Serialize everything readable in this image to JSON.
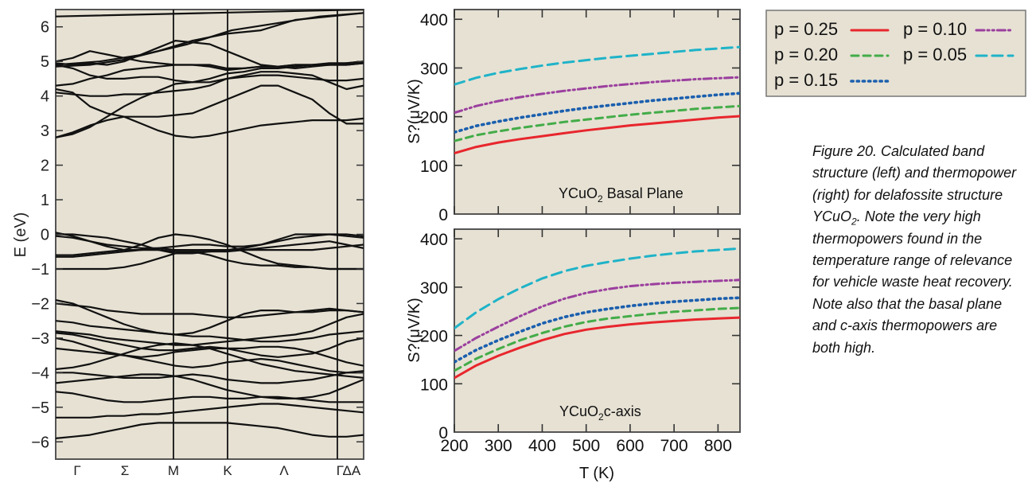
{
  "caption": {
    "text": "Figure 20. Calculated band structure (left) and thermopower (right) for delafossite structure YCuO",
    "sub": "2",
    "tail": ". Note the very high thermopowers found in the temperature range of relevance for vehicle waste heat recovery. Note also that the basal plane and c-axis thermopowers are both high."
  },
  "legend": {
    "entries": [
      {
        "label": "p = 0.25",
        "color": "#e8262d",
        "dash": "solid"
      },
      {
        "label": "p = 0.10",
        "color": "#9b3f9e",
        "dash": "dashdotdot"
      },
      {
        "label": "p = 0.20",
        "color": "#43ac48",
        "dash": "dashed"
      },
      {
        "label": "p = 0.05",
        "color": "#1fb3c8",
        "dash": "longdash"
      },
      {
        "label": "p = 0.15",
        "color": "#1b5fae",
        "dash": "dotted"
      }
    ]
  },
  "chart_data": [
    {
      "type": "line",
      "title": "",
      "xlabel": "",
      "ylabel": "E (eV)",
      "ylim": [
        -6.5,
        6.5
      ],
      "yticks": [
        6,
        5,
        4,
        3,
        2,
        1,
        0,
        -1,
        -2,
        -3,
        -4,
        -5,
        -6
      ],
      "ytick_labels": [
        "6",
        "5",
        "4",
        "3",
        "2",
        "1",
        "0",
        "−1",
        "−2",
        "−3",
        "−4",
        "−5",
        "−6"
      ],
      "x_labels": [
        "Γ",
        "Σ",
        "M",
        "K",
        "Λ",
        "ΓΔA"
      ],
      "x_vertical_lines": [
        "M",
        "K",
        "Γ"
      ],
      "bands": [
        [
          4.85,
          4.9,
          5.05,
          5.3,
          5.6,
          5.8,
          5.9,
          6.2,
          6.3,
          6.4
        ],
        [
          4.9,
          5.0,
          5.2,
          5.5,
          5.9,
          6.1,
          6.3,
          6.4
        ],
        [
          4.95,
          4.9,
          4.95,
          4.9,
          5.0,
          5.2,
          5.4,
          5.6,
          5.55,
          5.5,
          5.3,
          5.1,
          4.9,
          4.85,
          4.8,
          4.85,
          4.9,
          4.95,
          5.0
        ],
        [
          4.9,
          4.8,
          4.6,
          4.5,
          4.5,
          4.55,
          4.55,
          4.45,
          4.4,
          4.5,
          4.65,
          4.7,
          4.8,
          4.8,
          4.85,
          4.9,
          4.9,
          4.9,
          4.95
        ],
        [
          4.3,
          4.35,
          4.5,
          4.6,
          4.75,
          4.8,
          4.85,
          4.9,
          4.9,
          4.85,
          4.75,
          4.8,
          4.85,
          4.85,
          4.9,
          4.9,
          4.9,
          4.9,
          4.95
        ],
        [
          5.0,
          5.1,
          5.3,
          5.2,
          5.1,
          5.0,
          4.95,
          4.9,
          4.9,
          4.9,
          4.8,
          4.8,
          4.85,
          4.85,
          4.9,
          4.9,
          4.95,
          4.95,
          5.0
        ],
        [
          4.1,
          4.05,
          4.0,
          4.0,
          4.05,
          4.05,
          4.1,
          4.15,
          4.2,
          4.3,
          4.5,
          4.6,
          4.7,
          4.7,
          4.65,
          4.6,
          4.4,
          4.2,
          4.3
        ],
        [
          2.8,
          2.95,
          3.15,
          3.3,
          3.4,
          3.4,
          3.4,
          3.45,
          3.5,
          3.7,
          3.9,
          4.1,
          4.3,
          4.3,
          4.1,
          3.9,
          3.5,
          3.2,
          3.2
        ],
        [
          4.2,
          4.1,
          3.7,
          3.5,
          3.4,
          3.2,
          3.0,
          2.85,
          2.8,
          2.85,
          2.95,
          3.05,
          3.15,
          3.2,
          3.25,
          3.3,
          3.3,
          3.3,
          3.35
        ],
        [
          2.8,
          2.9,
          3.1,
          3.4,
          3.7,
          3.95,
          4.15,
          4.35,
          4.4,
          4.4,
          4.5,
          4.55,
          4.6,
          4.6,
          4.55,
          4.5,
          4.45,
          4.45,
          4.5
        ],
        [
          6.3,
          6.4,
          6.5
        ],
        [
          0.05,
          -0.05,
          -0.2,
          -0.35,
          -0.45,
          -0.45,
          -0.4,
          -0.35,
          -0.3,
          -0.3,
          -0.35,
          -0.35,
          -0.3,
          -0.2,
          -0.1,
          -0.05,
          0.0,
          -0.05,
          -0.1
        ],
        [
          -0.05,
          -0.1,
          -0.2,
          -0.3,
          -0.35,
          -0.4,
          -0.4,
          -0.45,
          -0.45,
          -0.45,
          -0.45,
          -0.45,
          -0.45,
          -0.45,
          -0.45,
          -0.45,
          -0.4,
          -0.35,
          -0.3
        ],
        [
          -0.6,
          -0.6,
          -0.55,
          -0.5,
          -0.45,
          -0.3,
          -0.1,
          0.0,
          -0.05,
          -0.15,
          -0.3,
          -0.5,
          -0.7,
          -0.85,
          -0.9,
          -0.95,
          -1.0,
          -1.0,
          -1.0
        ],
        [
          -0.65,
          -0.65,
          -0.6,
          -0.55,
          -0.5,
          -0.45,
          -0.45,
          -0.5,
          -0.5,
          -0.5,
          -0.5,
          -0.45,
          -0.4,
          -0.35,
          -0.3,
          -0.25,
          -0.2,
          -0.3,
          -0.4
        ],
        [
          -1.0,
          -1.0,
          -1.0,
          -1.0,
          -0.95,
          -0.85,
          -0.7,
          -0.55,
          -0.5,
          -0.6,
          -0.75,
          -0.85,
          -0.9,
          -0.9,
          -0.95,
          -0.95,
          -1.0,
          -1.0,
          -1.0
        ],
        [
          0.0,
          0.0,
          -0.05,
          -0.1,
          -0.2,
          -0.3,
          -0.45,
          -0.55,
          -0.55,
          -0.5,
          -0.45,
          -0.4,
          -0.3,
          -0.15,
          0.0,
          0.0,
          0.0,
          0.0,
          -0.05
        ],
        [
          -1.9,
          -2.0,
          -2.2,
          -2.4,
          -2.6,
          -2.75,
          -2.85,
          -2.9,
          -2.85,
          -2.7,
          -2.5,
          -2.3,
          -2.2,
          -2.2,
          -2.25,
          -2.25,
          -2.2,
          -2.2,
          -2.25
        ],
        [
          -2.0,
          -2.05,
          -2.1,
          -2.2,
          -2.25,
          -2.3,
          -2.3,
          -2.3,
          -2.3,
          -2.35,
          -2.4,
          -2.4,
          -2.35,
          -2.3,
          -2.25,
          -2.2,
          -2.15,
          -2.2,
          -2.25
        ],
        [
          -2.5,
          -2.55,
          -2.65,
          -2.7,
          -2.75,
          -2.8,
          -2.85,
          -2.9,
          -2.95,
          -2.95,
          -3.0,
          -3.05,
          -3.1,
          -3.1,
          -3.05,
          -3.0,
          -2.9,
          -2.85,
          -2.8
        ],
        [
          -2.8,
          -2.85,
          -2.9,
          -3.0,
          -3.05,
          -3.1,
          -3.15,
          -3.2,
          -3.2,
          -3.15,
          -3.1,
          -3.05,
          -3.0,
          -2.95,
          -2.9,
          -2.8,
          -2.6,
          -2.4,
          -2.3
        ],
        [
          -2.85,
          -2.9,
          -3.0,
          -3.1,
          -3.2,
          -3.3,
          -3.35,
          -3.35,
          -3.3,
          -3.25,
          -3.3,
          -3.4,
          -3.5,
          -3.55,
          -3.5,
          -3.45,
          -3.3,
          -3.1,
          -3.0
        ],
        [
          -3.0,
          -3.1,
          -3.25,
          -3.4,
          -3.5,
          -3.55,
          -3.5,
          -3.4,
          -3.35,
          -3.3,
          -3.3,
          -3.3,
          -3.25,
          -3.25,
          -3.3,
          -3.4,
          -3.55,
          -3.7,
          -3.8
        ],
        [
          -3.3,
          -3.35,
          -3.4,
          -3.45,
          -3.5,
          -3.6,
          -3.7,
          -3.8,
          -3.85,
          -3.8,
          -3.7,
          -3.65,
          -3.6,
          -3.65,
          -3.75,
          -3.85,
          -3.95,
          -4.0,
          -4.0
        ],
        [
          -3.9,
          -3.85,
          -3.75,
          -3.6,
          -3.45,
          -3.3,
          -3.2,
          -3.15,
          -3.2,
          -3.3,
          -3.45,
          -3.6,
          -3.75,
          -3.85,
          -3.95,
          -4.0,
          -4.05,
          -4.1,
          -4.15
        ],
        [
          -4.0,
          -4.0,
          -4.05,
          -4.1,
          -4.15,
          -4.15,
          -4.15,
          -4.1,
          -4.05,
          -4.1,
          -4.2,
          -4.25,
          -4.3,
          -4.3,
          -4.25,
          -4.2,
          -4.1,
          -4.0,
          -3.95
        ],
        [
          -4.3,
          -4.25,
          -4.2,
          -4.15,
          -4.1,
          -4.05,
          -4.05,
          -4.1,
          -4.2,
          -4.35,
          -4.5,
          -4.6,
          -4.7,
          -4.75,
          -4.75,
          -4.7,
          -4.6,
          -4.4,
          -4.2
        ],
        [
          -4.55,
          -4.6,
          -4.7,
          -4.8,
          -4.85,
          -4.85,
          -4.8,
          -4.75,
          -4.7,
          -4.7,
          -4.75,
          -4.75,
          -4.7,
          -4.7,
          -4.75,
          -4.8,
          -4.85,
          -4.85,
          -4.85
        ],
        [
          -5.3,
          -5.3,
          -5.3,
          -5.25,
          -5.25,
          -5.2,
          -5.2,
          -5.15,
          -5.1,
          -5.05,
          -5.0,
          -4.95,
          -4.9,
          -4.9,
          -4.95,
          -5.0,
          -5.05,
          -5.1,
          -5.15
        ],
        [
          -5.9,
          -5.85,
          -5.8,
          -5.7,
          -5.6,
          -5.5,
          -5.45,
          -5.45,
          -5.45,
          -5.45,
          -5.45,
          -5.5,
          -5.55,
          -5.6,
          -5.7,
          -5.8,
          -5.85,
          -5.85,
          -5.8
        ]
      ]
    },
    {
      "type": "line",
      "title": "",
      "annotation": "YCuO",
      "annotation_sub": "2",
      "annotation_tail": " Basal Plane",
      "xlabel": "",
      "ylabel": "S?(μV/K)",
      "xlim": [
        200,
        850
      ],
      "ylim": [
        0,
        420
      ],
      "yticks": [
        0,
        100,
        200,
        300,
        400
      ],
      "x": [
        200,
        250,
        300,
        350,
        400,
        450,
        500,
        550,
        600,
        650,
        700,
        750,
        800,
        850
      ],
      "series": [
        {
          "name": "p = 0.25",
          "values": [
            125,
            138,
            147,
            154,
            160,
            166,
            172,
            177,
            182,
            186,
            190,
            194,
            198,
            201
          ]
        },
        {
          "name": "p = 0.20",
          "values": [
            150,
            162,
            170,
            177,
            183,
            189,
            194,
            199,
            204,
            208,
            212,
            216,
            219,
            222
          ]
        },
        {
          "name": "p = 0.15",
          "values": [
            168,
            181,
            190,
            198,
            205,
            212,
            218,
            223,
            228,
            233,
            237,
            241,
            245,
            248
          ]
        },
        {
          "name": "p = 0.10",
          "values": [
            208,
            222,
            232,
            240,
            247,
            253,
            258,
            263,
            267,
            271,
            274,
            277,
            279,
            281
          ]
        },
        {
          "name": "p = 0.05",
          "values": [
            266,
            280,
            290,
            298,
            305,
            311,
            316,
            321,
            325,
            329,
            333,
            337,
            340,
            343
          ]
        }
      ]
    },
    {
      "type": "line",
      "title": "",
      "annotation": "YCuO",
      "annotation_sub": "2",
      "annotation_tail": "c-axis",
      "xlabel": "T (K)",
      "ylabel": "S?(μV/K)",
      "xlim": [
        200,
        850
      ],
      "ylim": [
        0,
        420
      ],
      "xticks": [
        200,
        300,
        400,
        500,
        600,
        700,
        800
      ],
      "yticks": [
        0,
        100,
        200,
        300,
        400
      ],
      "x": [
        200,
        250,
        300,
        350,
        400,
        450,
        500,
        550,
        600,
        650,
        700,
        750,
        800,
        850
      ],
      "series": [
        {
          "name": "p = 0.25",
          "values": [
            112,
            138,
            158,
            175,
            190,
            203,
            212,
            218,
            223,
            227,
            230,
            233,
            235,
            237
          ]
        },
        {
          "name": "p = 0.20",
          "values": [
            127,
            152,
            172,
            190,
            205,
            218,
            228,
            235,
            240,
            245,
            249,
            252,
            255,
            257
          ]
        },
        {
          "name": "p = 0.15",
          "values": [
            145,
            170,
            190,
            208,
            225,
            238,
            248,
            255,
            261,
            266,
            270,
            273,
            276,
            278
          ]
        },
        {
          "name": "p = 0.10",
          "values": [
            168,
            195,
            218,
            240,
            260,
            276,
            288,
            296,
            302,
            306,
            309,
            311,
            313,
            315
          ]
        },
        {
          "name": "p = 0.05",
          "values": [
            215,
            248,
            275,
            298,
            318,
            333,
            344,
            352,
            359,
            365,
            370,
            374,
            377,
            380
          ]
        }
      ]
    }
  ]
}
